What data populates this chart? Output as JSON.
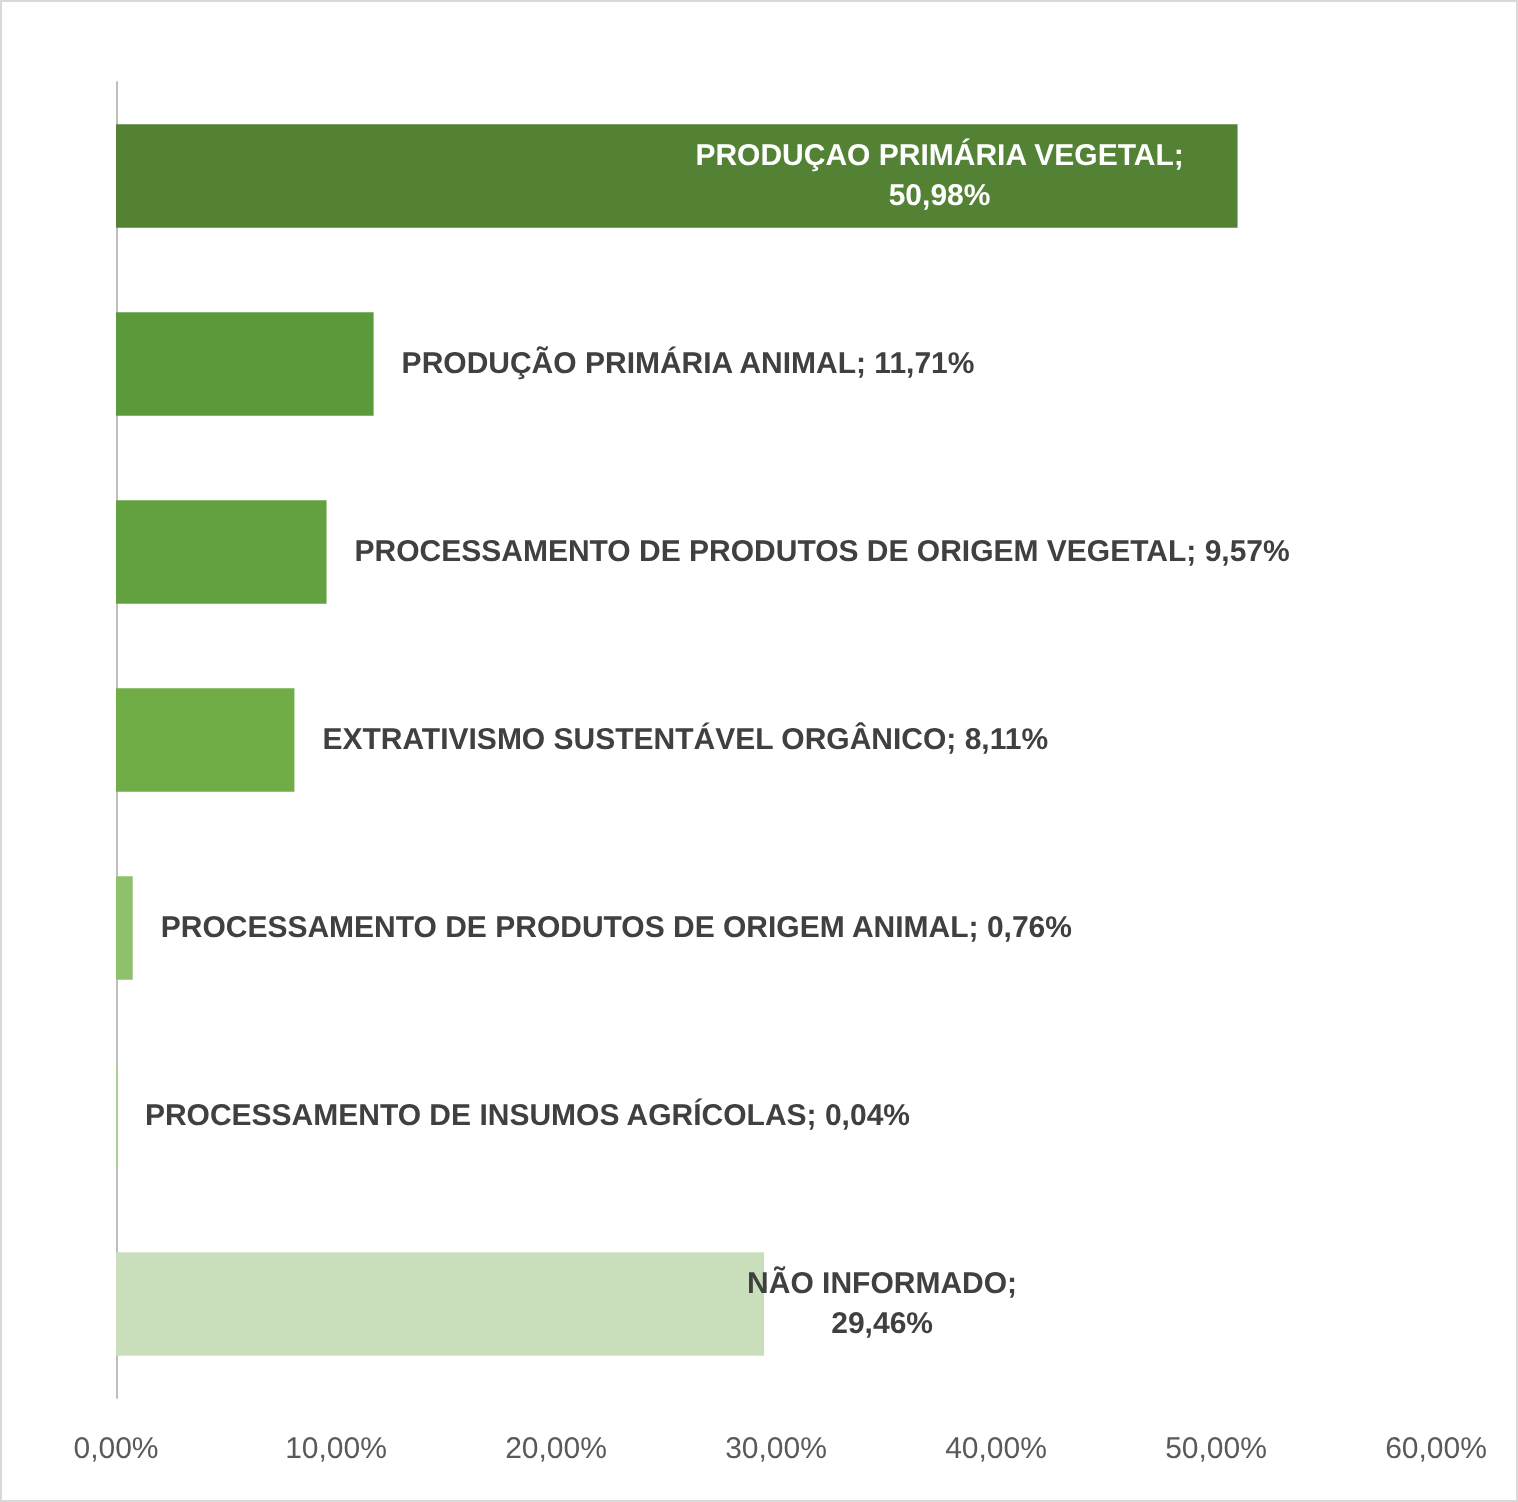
{
  "chart_data": {
    "type": "bar",
    "orientation": "horizontal",
    "categories": [
      null,
      null,
      null,
      null,
      null,
      null,
      null
    ],
    "values": [
      50.98,
      11.71,
      9.57,
      8.11,
      0.76,
      0.04,
      29.46
    ],
    "colors": [
      "#548235",
      "#5b9a3b",
      "#62a040",
      "#70ad47",
      "#8fc06c",
      "#a9d08e",
      "#c9dfbc"
    ],
    "value_labels": [
      "PRODUÇAO PRIMÁRIA VEGETAL; 50,98%",
      "PRODUÇÃO PRIMÁRIA ANIMAL; 11,71%",
      "PROCESSAMENTO DE PRODUTOS DE ORIGEM VEGETAL; 9,57%",
      "EXTRATIVISMO SUSTENTÁVEL ORGÂNICO; 8,11%",
      "PROCESSAMENTO DE PRODUTOS DE ORIGEM ANIMAL; 0,76%",
      "PROCESSAMENTO DE INSUMOS AGRÍCOLAS; 0,04%",
      "NÃO INFORMADO; 29,46%"
    ],
    "xlim": [
      0,
      60
    ],
    "xticks": [
      {
        "value": 0,
        "label": "0,00%"
      },
      {
        "value": 10,
        "label": "10,00%"
      },
      {
        "value": 20,
        "label": "20,00%"
      },
      {
        "value": 30,
        "label": "30,00%"
      },
      {
        "value": 40,
        "label": "40,00%"
      },
      {
        "value": 50,
        "label": "50,00%"
      },
      {
        "value": 60,
        "label": "60,00%"
      }
    ],
    "tick_labels": "x",
    "grid": false
  }
}
